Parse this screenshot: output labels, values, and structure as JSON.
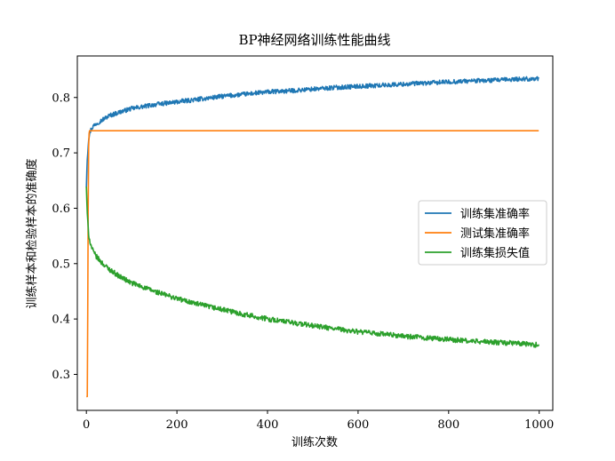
{
  "chart_data": {
    "type": "line",
    "title": "BP神经网络训练性能曲线",
    "xlabel": "训练次数",
    "ylabel": "训练样本和检验样本的准确度",
    "xlim": [
      -20,
      1030
    ],
    "ylim": [
      0.235,
      0.875
    ],
    "xticks": [
      0,
      200,
      400,
      600,
      800,
      1000
    ],
    "yticks": [
      0.3,
      0.4,
      0.5,
      0.6,
      0.7,
      0.8
    ],
    "xtick_labels": [
      "0",
      "200",
      "400",
      "600",
      "800",
      "1000"
    ],
    "ytick_labels": [
      "0.3",
      "0.4",
      "0.5",
      "0.6",
      "0.7",
      "0.8"
    ],
    "grid": false,
    "legend_position": "center-right",
    "series": [
      {
        "name": "训练集准确率",
        "color": "#1f77b4",
        "x": [
          0,
          1,
          2,
          3,
          4,
          5,
          6,
          8,
          10,
          15,
          20,
          30,
          40,
          50,
          75,
          100,
          150,
          200,
          250,
          300,
          350,
          400,
          450,
          500,
          550,
          600,
          650,
          700,
          750,
          800,
          850,
          900,
          950,
          999
        ],
        "y": [
          0.64,
          0.67,
          0.69,
          0.7,
          0.715,
          0.725,
          0.73,
          0.737,
          0.742,
          0.748,
          0.752,
          0.757,
          0.762,
          0.767,
          0.774,
          0.78,
          0.787,
          0.792,
          0.797,
          0.802,
          0.806,
          0.81,
          0.812,
          0.815,
          0.818,
          0.82,
          0.822,
          0.824,
          0.826,
          0.828,
          0.83,
          0.831,
          0.833,
          0.834
        ]
      },
      {
        "name": "测试集准确率",
        "color": "#ff7f0e",
        "x": [
          0,
          1,
          2,
          3,
          4,
          5,
          6,
          7,
          8,
          10,
          20,
          50,
          100,
          200,
          400,
          600,
          800,
          999
        ],
        "y": [
          0.26,
          0.26,
          0.26,
          0.41,
          0.6,
          0.71,
          0.735,
          0.74,
          0.74,
          0.74,
          0.74,
          0.74,
          0.74,
          0.74,
          0.74,
          0.74,
          0.74,
          0.74
        ]
      },
      {
        "name": "训练集损失值",
        "color": "#2ca02c",
        "x": [
          0,
          1,
          2,
          3,
          4,
          5,
          6,
          8,
          10,
          15,
          20,
          30,
          40,
          50,
          75,
          100,
          150,
          200,
          250,
          300,
          350,
          400,
          450,
          500,
          550,
          600,
          650,
          700,
          750,
          800,
          850,
          900,
          950,
          999
        ],
        "y": [
          0.64,
          0.61,
          0.59,
          0.575,
          0.565,
          0.555,
          0.548,
          0.54,
          0.533,
          0.522,
          0.515,
          0.505,
          0.497,
          0.49,
          0.476,
          0.465,
          0.45,
          0.437,
          0.426,
          0.417,
          0.408,
          0.4,
          0.394,
          0.388,
          0.382,
          0.377,
          0.373,
          0.369,
          0.366,
          0.363,
          0.36,
          0.358,
          0.356,
          0.353
        ]
      }
    ]
  }
}
